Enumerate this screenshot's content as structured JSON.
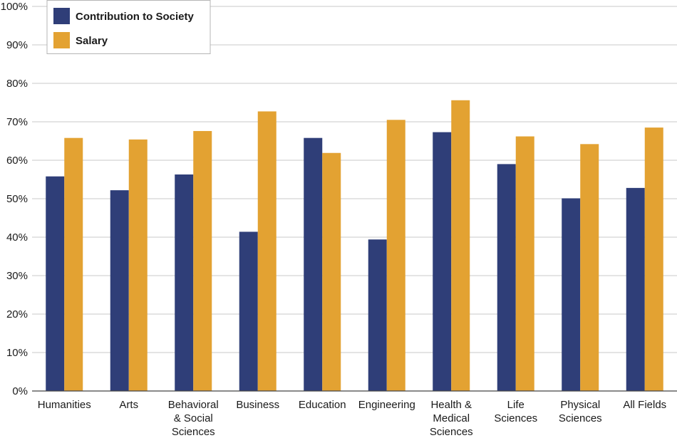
{
  "chart_data": {
    "type": "bar",
    "categories": [
      [
        "Humanities"
      ],
      [
        "Arts"
      ],
      [
        "Behavioral",
        "& Social",
        "Sciences"
      ],
      [
        "Business"
      ],
      [
        "Education"
      ],
      [
        "Engineering"
      ],
      [
        "Health &",
        "Medical",
        "Sciences"
      ],
      [
        "Life",
        "Sciences"
      ],
      [
        "Physical",
        "Sciences"
      ],
      [
        "All Fields"
      ]
    ],
    "series": [
      {
        "name": "Contribution to Society",
        "color": "#2f3e78",
        "values": [
          55.8,
          52.2,
          56.3,
          41.4,
          65.8,
          39.4,
          67.3,
          59.0,
          50.1,
          52.8
        ]
      },
      {
        "name": "Salary",
        "color": "#e3a232",
        "values": [
          65.8,
          65.4,
          67.6,
          72.7,
          61.9,
          70.5,
          75.6,
          66.2,
          64.2,
          68.5
        ]
      }
    ],
    "ylim": [
      0,
      100
    ],
    "yticks": [
      0,
      10,
      20,
      30,
      40,
      50,
      60,
      70,
      80,
      90,
      100
    ],
    "ytick_labels": [
      "0%",
      "10%",
      "20%",
      "30%",
      "40%",
      "50%",
      "60%",
      "70%",
      "80%",
      "90%",
      "100%"
    ],
    "grid": true,
    "legend_position": "top-left"
  }
}
